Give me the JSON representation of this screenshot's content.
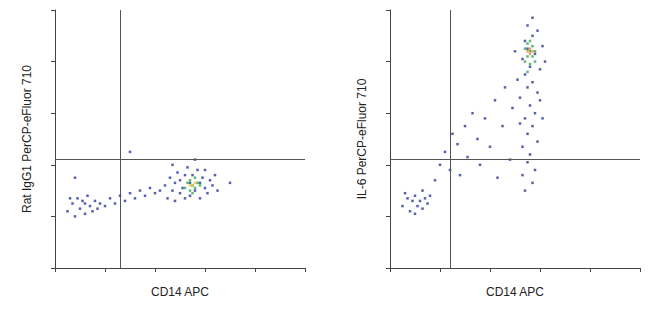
{
  "chart_data": [
    {
      "type": "scatter",
      "x_label": "CD14 APC",
      "y_label": "Rat IgG1 PerCP-eFluor 710",
      "xlim": [
        0,
        100
      ],
      "ylim": [
        0,
        100
      ],
      "xticks": [
        0,
        20,
        40,
        60,
        80,
        100
      ],
      "yticks": [
        0,
        20,
        40,
        60,
        80,
        100
      ],
      "tick_labels": false,
      "grid": false,
      "quadrant": {
        "x": 26,
        "y": 42
      },
      "series": [
        {
          "color": "#2b3a9a",
          "x": [
            5,
            7,
            8,
            9,
            10,
            11,
            12,
            12,
            13,
            14,
            15,
            16,
            17,
            18,
            6,
            20,
            22,
            24,
            26,
            28,
            30,
            32,
            34,
            36,
            38,
            40,
            42,
            44,
            45,
            46,
            47,
            48,
            48,
            49,
            50,
            50,
            51,
            52,
            52,
            53,
            54,
            54,
            55,
            56,
            57,
            58,
            58,
            59,
            60,
            60,
            61,
            62,
            63,
            64,
            65,
            47,
            56,
            30,
            8,
            70
          ],
          "y": [
            22,
            25,
            20,
            27,
            23,
            26,
            21,
            25,
            28,
            24,
            22,
            26,
            23,
            25,
            27,
            24,
            27,
            25,
            28,
            26,
            29,
            27,
            30,
            28,
            31,
            29,
            30,
            32,
            27,
            35,
            30,
            33,
            26,
            37,
            29,
            34,
            31,
            36,
            27,
            39,
            33,
            28,
            36,
            30,
            38,
            33,
            27,
            35,
            31,
            38,
            29,
            34,
            32,
            36,
            30,
            40,
            42,
            45,
            35,
            33
          ]
        },
        {
          "color": "#2faa4a",
          "x": [
            52,
            53,
            54,
            54,
            55,
            56,
            56,
            57,
            55,
            58
          ],
          "y": [
            31,
            33,
            30,
            34,
            32,
            31,
            35,
            33,
            29,
            32
          ]
        },
        {
          "color": "#e9c43a",
          "x": [
            55,
            56,
            54
          ],
          "y": [
            32,
            33,
            32
          ]
        }
      ]
    },
    {
      "type": "scatter",
      "x_label": "CD14 APC",
      "y_label": "IL-6 PerCP-eFluor 710",
      "xlim": [
        0,
        100
      ],
      "ylim": [
        0,
        100
      ],
      "xticks": [
        0,
        20,
        40,
        60,
        80,
        100
      ],
      "yticks": [
        0,
        20,
        40,
        60,
        80,
        100
      ],
      "tick_labels": false,
      "grid": false,
      "quadrant": {
        "x": 24,
        "y": 42
      },
      "series": [
        {
          "color": "#2b3a9a",
          "x": [
            5,
            7,
            8,
            9,
            10,
            11,
            12,
            13,
            14,
            15,
            6,
            16,
            10,
            13,
            18,
            20,
            22,
            24,
            25,
            27,
            28,
            30,
            31,
            33,
            35,
            36,
            38,
            40,
            42,
            43,
            45,
            46,
            48,
            49,
            54,
            57,
            53,
            58,
            55,
            56,
            53,
            59,
            55,
            57,
            54,
            58,
            56,
            52,
            59,
            55,
            57,
            54,
            60,
            56,
            53,
            58,
            55,
            61,
            54,
            57,
            59,
            55,
            57,
            51,
            62,
            50,
            60,
            52,
            61
          ],
          "y": [
            24,
            27,
            22,
            26,
            28,
            24,
            26,
            23,
            27,
            25,
            29,
            28,
            21,
            30,
            34,
            40,
            45,
            38,
            52,
            48,
            36,
            55,
            43,
            60,
            50,
            40,
            58,
            47,
            65,
            35,
            55,
            70,
            42,
            62,
            30,
            33,
            36,
            38,
            41,
            44,
            47,
            49,
            52,
            55,
            58,
            60,
            63,
            66,
            68,
            70,
            72,
            75,
            77,
            78,
            81,
            83,
            85,
            86,
            88,
            90,
            92,
            94,
            97,
            73,
            80,
            84,
            65,
            56,
            58
          ]
        },
        {
          "color": "#2faa4a",
          "x": [
            54,
            55,
            56,
            57,
            58,
            56,
            55,
            57,
            54,
            56,
            58,
            55
          ],
          "y": [
            80,
            82,
            84,
            86,
            80,
            79,
            87,
            82,
            85,
            88,
            84,
            76
          ]
        },
        {
          "color": "#e98a3a",
          "x": [
            56,
            57,
            56,
            55
          ],
          "y": [
            83,
            84,
            85,
            84
          ]
        }
      ]
    }
  ]
}
